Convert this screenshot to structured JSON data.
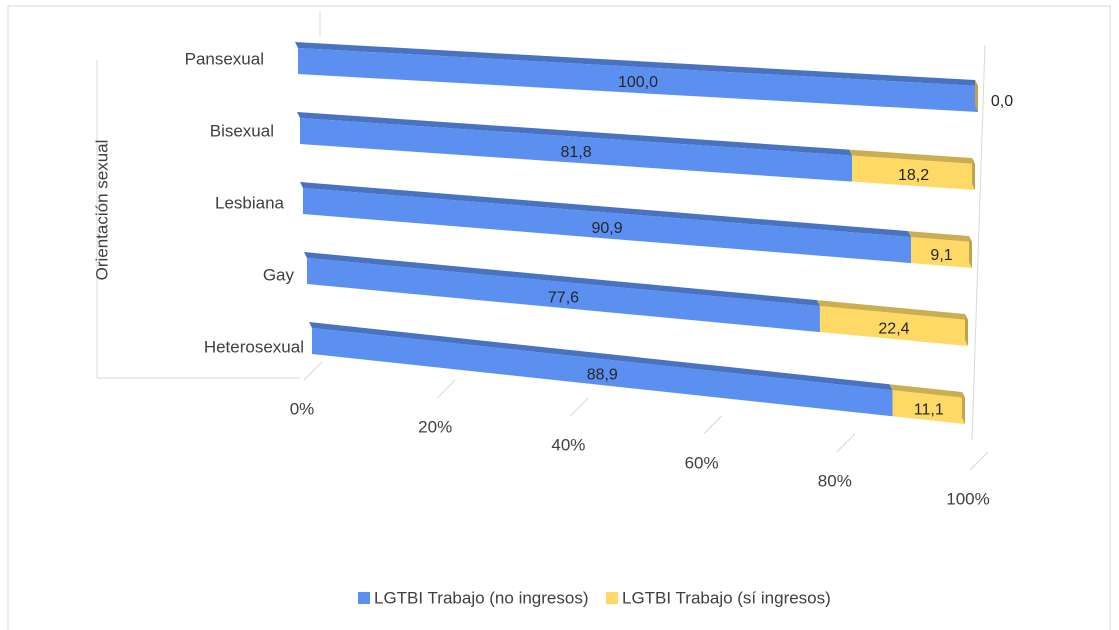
{
  "chart_data": {
    "type": "bar",
    "orientation": "horizontal",
    "stacked": true,
    "y_axis_label": "Orientación sexual",
    "categories": [
      "Pansexual",
      "Bisexual",
      "Lesbiana",
      "Gay",
      "Heterosexual"
    ],
    "series": [
      {
        "name": "LGTBI Trabajo (no ingresos)",
        "color": "#5b8ff0",
        "values": [
          100,
          81.8,
          90.9,
          77.6,
          88.9
        ],
        "value_labels": [
          "100,0",
          "81,8",
          "90,9",
          "77,6",
          "88,9"
        ]
      },
      {
        "name": "LGTBI Trabajo (sí ingresos)",
        "color": "#ffd966",
        "values": [
          0,
          18.2,
          9.1,
          22.4,
          11.1
        ],
        "value_labels": [
          "0,0",
          "18,2",
          "9,1",
          "22,4",
          "11,1"
        ]
      }
    ],
    "xlim": [
      0,
      100
    ],
    "xticks": [
      {
        "value": 0,
        "label": "0%"
      },
      {
        "value": 20,
        "label": "20%"
      },
      {
        "value": 40,
        "label": "40%"
      },
      {
        "value": 60,
        "label": "60%"
      },
      {
        "value": 80,
        "label": "80%"
      },
      {
        "value": 100,
        "label": "100%"
      }
    ],
    "legend": "bottom"
  }
}
